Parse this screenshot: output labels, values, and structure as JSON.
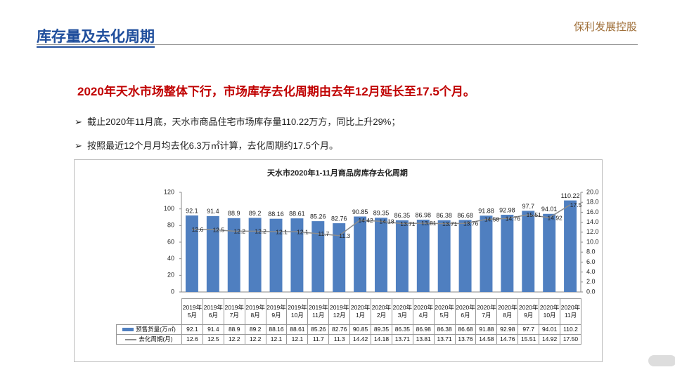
{
  "header": {
    "title": "库存量及去化周期",
    "logo": "保利发展控股"
  },
  "headline": "2020年天水市场整体下行，市场库存去化周期由去年12月延长至17.5个月。",
  "bullets": [
    "截止2020年11月底，天水市商品住宅市场库存量110.22万方，同比上升29%；",
    "按照最近12个月月均去化6.3万㎡计算，去化周期约17.5个月。"
  ],
  "chart_data": {
    "type": "bar-line",
    "title": "天水市2020年1-11月商品房库存去化周期",
    "categories": [
      "2019年5月",
      "2019年6月",
      "2019年7月",
      "2019年8月",
      "2019年9月",
      "2019年10月",
      "2019年11月",
      "2019年12月",
      "2020年1月",
      "2020年2月",
      "2020年3月",
      "2020年4月",
      "2020年5月",
      "2020年6月",
      "2020年7月",
      "2020年8月",
      "2020年9月",
      "2020年10月",
      "2020年11月"
    ],
    "series": [
      {
        "name": "预售货量(万㎡)",
        "type": "bar",
        "color": "#4f7fc0",
        "values": [
          92.1,
          91.4,
          88.9,
          89.2,
          88.16,
          88.61,
          85.26,
          82.76,
          90.85,
          89.35,
          86.35,
          86.98,
          86.38,
          86.68,
          91.88,
          92.98,
          97.7,
          94.01,
          110.22
        ],
        "table_labels": [
          "92.1",
          "91.4",
          "88.9",
          "89.2",
          "88.16",
          "88.61",
          "85.26",
          "82.76",
          "90.85",
          "89.35",
          "86.35",
          "86.98",
          "86.38",
          "86.68",
          "91.88",
          "92.98",
          "97.7",
          "94.01",
          "110.2"
        ]
      },
      {
        "name": "去化周期(月)",
        "type": "line",
        "axis": "y2",
        "color": "#8c8c8c",
        "values": [
          12.6,
          12.5,
          12.2,
          12.2,
          12.1,
          12.1,
          11.7,
          11.3,
          14.42,
          14.18,
          13.71,
          13.81,
          13.71,
          13.76,
          14.58,
          14.76,
          15.51,
          14.92,
          17.5
        ],
        "table_labels": [
          "12.6",
          "12.5",
          "12.2",
          "12.2",
          "12.1",
          "12.1",
          "11.7",
          "11.3",
          "14.42",
          "14.18",
          "13.71",
          "13.81",
          "13.71",
          "13.76",
          "14.58",
          "14.76",
          "15.51",
          "14.92",
          "17.50"
        ]
      }
    ],
    "ylim": [
      0,
      120
    ],
    "yticks": [
      0,
      20,
      40,
      60,
      80,
      100,
      120
    ],
    "y2lim": [
      0,
      20
    ],
    "y2ticks": [
      {
        "value": 0,
        "label": "0.0"
      },
      {
        "value": 2,
        "label": "2.0"
      },
      {
        "value": 4,
        "label": "4.0"
      },
      {
        "value": 6,
        "label": "6.0"
      },
      {
        "value": 8,
        "label": "8.0"
      },
      {
        "value": 10,
        "label": "10.0"
      },
      {
        "value": 12,
        "label": "12.0"
      },
      {
        "value": 14,
        "label": "14.0"
      },
      {
        "value": 16,
        "label": "16.0"
      },
      {
        "value": 18,
        "label": "18.0"
      },
      {
        "value": 20,
        "label": "20.0"
      }
    ]
  }
}
